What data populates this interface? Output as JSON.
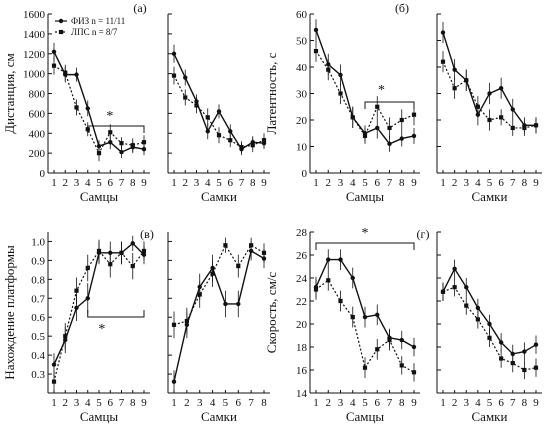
{
  "legend": {
    "entries": [
      {
        "text": "ФИЗ n = 11/11",
        "style": "solid",
        "marker": "circle"
      },
      {
        "text": "ЛПС n = 8/7",
        "style": "dotted",
        "marker": "square"
      }
    ]
  },
  "chart_data": [
    {
      "id": "distance-males",
      "type": "line",
      "panel_label": "(а)",
      "ylabel": "Дистанция, см",
      "xlabel": "Самцы",
      "categories": [
        "1",
        "2",
        "3",
        "4",
        "5",
        "6",
        "7",
        "8",
        "9"
      ],
      "ylim": [
        0,
        1600
      ],
      "yticks": [
        "0",
        "200",
        "400",
        "600",
        "800",
        "1000",
        "1200",
        "1400",
        "1600"
      ],
      "series": [
        {
          "name": "ФИЗ",
          "values": [
            1220,
            990,
            990,
            650,
            270,
            310,
            210,
            260,
            240
          ],
          "errors": [
            90,
            80,
            70,
            80,
            60,
            70,
            60,
            60,
            60
          ]
        },
        {
          "name": "ЛПС",
          "values": [
            1080,
            1010,
            660,
            440,
            200,
            410,
            300,
            280,
            310
          ],
          "errors": [
            90,
            80,
            80,
            70,
            80,
            80,
            60,
            70,
            70
          ]
        }
      ],
      "significance": "*"
    },
    {
      "id": "distance-females",
      "type": "line",
      "panel_label": "",
      "ylabel": "",
      "xlabel": "Самки",
      "categories": [
        "1",
        "2",
        "3",
        "4",
        "5",
        "6",
        "7",
        "8",
        "9"
      ],
      "ylim": [
        0,
        1600
      ],
      "series": [
        {
          "name": "ФИЗ",
          "values": [
            1200,
            960,
            720,
            420,
            620,
            420,
            240,
            310,
            300
          ],
          "errors": [
            90,
            80,
            70,
            80,
            70,
            70,
            60,
            60,
            60
          ]
        },
        {
          "name": "ЛПС",
          "values": [
            980,
            760,
            680,
            560,
            380,
            330,
            260,
            280,
            330
          ],
          "errors": [
            90,
            80,
            80,
            90,
            80,
            70,
            60,
            70,
            70
          ]
        }
      ]
    },
    {
      "id": "latency-males",
      "type": "line",
      "panel_label": "(б)",
      "ylabel": "Латентность, с",
      "xlabel": "Самцы",
      "categories": [
        "1",
        "2",
        "3",
        "4",
        "5",
        "6",
        "7",
        "8",
        "9"
      ],
      "ylim": [
        0,
        60
      ],
      "yticks": [
        "0",
        "10",
        "20",
        "30",
        "40",
        "50",
        "60"
      ],
      "series": [
        {
          "name": "ФИЗ",
          "values": [
            54,
            41,
            37,
            21,
            15,
            17,
            11,
            13,
            14
          ],
          "errors": [
            4,
            4,
            4,
            4,
            3,
            4,
            3,
            3,
            3
          ]
        },
        {
          "name": "ЛПС",
          "values": [
            46,
            39,
            30,
            21,
            14,
            25,
            17,
            20,
            22
          ],
          "errors": [
            4,
            4,
            4,
            4,
            3,
            4,
            4,
            4,
            4
          ]
        }
      ],
      "significance": "*"
    },
    {
      "id": "latency-females",
      "type": "line",
      "panel_label": "",
      "ylabel": "",
      "xlabel": "Самки",
      "categories": [
        "1",
        "2",
        "3",
        "4",
        "5",
        "6",
        "7",
        "8",
        "9"
      ],
      "ylim": [
        0,
        60
      ],
      "series": [
        {
          "name": "ФИЗ",
          "values": [
            53,
            39,
            35,
            22,
            30,
            32,
            24,
            18,
            18
          ],
          "errors": [
            4,
            4,
            4,
            4,
            4,
            4,
            4,
            3,
            3
          ]
        },
        {
          "name": "ЛПС",
          "values": [
            42,
            32,
            35,
            25,
            20,
            21,
            17,
            17,
            18
          ],
          "errors": [
            4,
            4,
            4,
            4,
            4,
            3,
            3,
            3,
            3
          ]
        }
      ]
    },
    {
      "id": "platform-males",
      "type": "line",
      "panel_label": "(в)",
      "ylabel": "Нахождение платформы",
      "xlabel": "Самцы",
      "categories": [
        "1",
        "2",
        "3",
        "4",
        "5",
        "6",
        "7",
        "8",
        "9"
      ],
      "ylim": [
        0.2,
        1.05
      ],
      "yticks": [
        "0.3",
        "0.4",
        "0.5",
        "0.6",
        "0.7",
        "0.8",
        "0.9",
        "1.0"
      ],
      "series": [
        {
          "name": "ФИЗ",
          "values": [
            0.35,
            0.48,
            0.65,
            0.7,
            0.94,
            0.94,
            0.94,
            0.99,
            0.93
          ],
          "errors": [
            0.06,
            0.07,
            0.07,
            0.08,
            0.06,
            0.06,
            0.06,
            0.04,
            0.05
          ]
        },
        {
          "name": "ЛПС",
          "values": [
            0.26,
            0.5,
            0.74,
            0.86,
            0.95,
            0.88,
            0.94,
            0.87,
            0.95
          ],
          "errors": [
            0.06,
            0.07,
            0.07,
            0.07,
            0.06,
            0.07,
            0.06,
            0.07,
            0.05
          ]
        }
      ],
      "significance": "*"
    },
    {
      "id": "platform-females",
      "type": "line",
      "panel_label": "",
      "ylabel": "",
      "xlabel": "Самки",
      "categories": [
        "1",
        "2",
        "3",
        "4",
        "5",
        "6",
        "7",
        "8"
      ],
      "ylim": [
        0.2,
        1.05
      ],
      "series": [
        {
          "name": "ФИЗ",
          "values": [
            0.26,
            0.56,
            0.76,
            0.86,
            0.67,
            0.67,
            0.95,
            0.91
          ],
          "errors": [
            0.06,
            0.07,
            0.07,
            0.07,
            0.07,
            0.07,
            0.05,
            0.05
          ]
        },
        {
          "name": "ЛПС",
          "values": [
            0.56,
            0.58,
            0.72,
            0.83,
            0.98,
            0.87,
            0.98,
            0.94
          ],
          "errors": [
            0.07,
            0.07,
            0.07,
            0.07,
            0.04,
            0.06,
            0.04,
            0.05
          ]
        }
      ]
    },
    {
      "id": "speed-males",
      "type": "line",
      "panel_label": "",
      "ylabel": "Скорость, см/с",
      "xlabel": "Самцы",
      "categories": [
        "1",
        "2",
        "3",
        "4",
        "5",
        "6",
        "7",
        "8",
        "9"
      ],
      "ylim": [
        14,
        28
      ],
      "yticks": [
        "14",
        "16",
        "18",
        "20",
        "22",
        "24",
        "26",
        "28"
      ],
      "series": [
        {
          "name": "ФИЗ",
          "values": [
            23.2,
            25.6,
            25.6,
            24.0,
            20.6,
            20.8,
            18.8,
            18.6,
            18.0
          ],
          "errors": [
            0.9,
            0.9,
            0.9,
            0.9,
            0.9,
            0.9,
            0.8,
            0.8,
            0.8
          ]
        },
        {
          "name": "ЛПС",
          "values": [
            23.0,
            23.8,
            22.0,
            20.6,
            16.2,
            17.8,
            18.6,
            16.4,
            15.8
          ],
          "errors": [
            0.9,
            0.9,
            0.9,
            0.9,
            0.9,
            0.9,
            0.9,
            0.8,
            0.8
          ]
        }
      ],
      "significance": "*"
    },
    {
      "id": "speed-females",
      "type": "line",
      "panel_label": "(г)",
      "ylabel": "",
      "xlabel": "Самки",
      "categories": [
        "1",
        "2",
        "3",
        "4",
        "5",
        "6",
        "7",
        "8",
        "9"
      ],
      "ylim": [
        14,
        28
      ],
      "series": [
        {
          "name": "ФИЗ",
          "values": [
            22.8,
            24.8,
            23.2,
            21.4,
            20.0,
            18.4,
            17.4,
            17.6,
            18.2
          ],
          "errors": [
            0.8,
            0.8,
            0.8,
            0.8,
            0.8,
            0.8,
            0.8,
            0.8,
            0.8
          ]
        },
        {
          "name": "ЛПС",
          "values": [
            22.8,
            23.2,
            21.6,
            20.4,
            18.8,
            17.0,
            16.6,
            16.0,
            16.2
          ],
          "errors": [
            0.8,
            0.8,
            0.8,
            0.8,
            0.8,
            0.8,
            0.8,
            0.8,
            0.8
          ]
        }
      ]
    }
  ]
}
